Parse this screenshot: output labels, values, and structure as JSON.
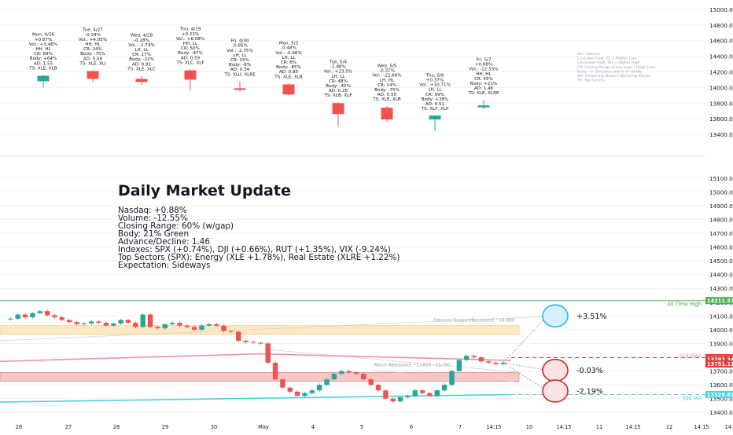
{
  "colors": {
    "up": "#26a69a",
    "down": "#ef5350",
    "ath": "#4caf50",
    "ema21": "#f48fb1",
    "ma50": "#4dd0e1",
    "red_level": "#e53935",
    "zone_orange": "#fde8c4",
    "zone_red": "#f7c6c6",
    "axis_text": "#131722",
    "grid": "#f0f3fa"
  },
  "weekly_panel": {
    "y_axis": [
      "15000.00",
      "14800.00",
      "14600.00",
      "14400.00",
      "14200.00",
      "14000.00",
      "13800.00",
      "13600.00",
      "13400.00"
    ],
    "ylim": [
      13300,
      15050
    ],
    "days": [
      {
        "lines": [
          "Mon, 4/26",
          "+0.87%",
          "Vol.: +3.46%",
          "HH, HL",
          "CR: 89%",
          "Body: +64%",
          "AD: 1.55",
          "TS: XLE, XLB"
        ],
        "o": 14080,
        "h": 14160,
        "l": 14000,
        "c": 14150
      },
      {
        "lines": [
          "Tue, 4/27",
          "-0.34%",
          "Vol.: +4.05%",
          "HH, HL",
          "CR: 24%",
          "Body: -75%",
          "AD: 0.58",
          "TS: XLE, XLI"
        ],
        "o": 14210,
        "h": 14220,
        "l": 14070,
        "c": 14110
      },
      {
        "lines": [
          "Wed, 4/28",
          "-0.28%",
          "Vol.: -2.74%",
          "LH, LL",
          "CR: 17%",
          "Body: -22%",
          "AD: 0.91",
          "TS: XLE, XLC"
        ],
        "o": 14110,
        "h": 14150,
        "l": 14030,
        "c": 14070
      },
      {
        "lines": [
          "Thu, 4/29",
          "+0.22%",
          "Vol.: +8.08%",
          "HH, LL",
          "CR: 50%",
          "Body: -47%",
          "AD: 0.59",
          "TS: XLC, XLF"
        ],
        "o": 14220,
        "h": 14230,
        "l": 13960,
        "c": 14100
      },
      {
        "lines": [
          "Fri, 4/30",
          "-0.85%",
          "Vol.: -2.75%",
          "LH, LL",
          "CR: 15%",
          "Body: -6%",
          "AD: 0.34",
          "TS: XLU, XLRE"
        ],
        "o": 13990,
        "h": 14080,
        "l": 13950,
        "c": 13970
      },
      {
        "lines": [
          "Mon, 5/3",
          "-0.48%",
          "Vol.: -0.66%",
          "LH, LL",
          "CR: 8%",
          "Body: -85%",
          "AD: 0.85",
          "TS: XLE, XLB"
        ],
        "o": 14040,
        "h": 14050,
        "l": 13900,
        "c": 13910
      },
      {
        "lines": [
          "Tue, 5/4",
          "-1.88%",
          "Vol.: +23.5%",
          "LH, LL",
          "CR: 48%",
          "Body: -45%",
          "AD: 0.28",
          "TS: XLB, XLF"
        ],
        "o": 13800,
        "h": 13810,
        "l": 13500,
        "c": 13660
      },
      {
        "lines": [
          "Wed, 5/5",
          "-0.37%",
          "Vol.: -22.86%",
          "LH, HL",
          "CR: 14%",
          "Body: -75%",
          "AD: 0.55",
          "TS: XLE, XLB"
        ],
        "o": 13740,
        "h": 13760,
        "l": 13560,
        "c": 13590
      },
      {
        "lines": [
          "Thu, 5/6",
          "+0.37%",
          "Vol.: +10.71%",
          "LH, LL",
          "CR: 99%",
          "Body: +38%",
          "AD: 0.51",
          "TS: XLF, XLP"
        ],
        "o": 13590,
        "h": 13640,
        "l": 13440,
        "c": 13640
      },
      {
        "lines": [
          "Fri, 5/7",
          "+0.88%",
          "Vol.: -12.55%",
          "HH, HL",
          "CR: 45%",
          "Body: +21%",
          "AD: 1.46",
          "TS: XLE, XLRE"
        ],
        "o": 13745,
        "h": 13840,
        "l": 13720,
        "c": 13770
      }
    ],
    "legend": [
      "Vol.: Volume",
      "LL=Lower Low, HL = Higher Low",
      "LH=Lower High, HH = Higher High",
      "CR: Closing Range (Close-Low) / (High-Low)",
      "Body: +/- Direction and % of candle",
      "AD: Advancing Stocks / Declining Stocks",
      "TS: Top Sectors"
    ]
  },
  "update": {
    "title": "Daily Market Update",
    "lines": [
      "Nasdaq: +0.88%",
      "Volume: -12.55%",
      "Closing Range: 60% (w/gap)",
      "Body: 21% Green",
      "Advance/Decline: 1.46",
      "Indexes: SPX (+0.74%), DJI (+0.66%), RUT (+1.35%), VIX (-9.24%)",
      "Top Sectors (SPX): Energy (XLE +1.78%), Real Estate (XLRE +1.22%)",
      "Expectation: Sideways"
    ]
  },
  "main_chart": {
    "y_axis": [
      "15100.00",
      "15000.00",
      "14900.00",
      "14800.00",
      "14700.00",
      "14600.00",
      "14500.00",
      "14400.00",
      "14300.00",
      "14200.00",
      "14100.00",
      "14000.00",
      "13900.00",
      "13800.00",
      "13700.00",
      "13600.00",
      "13500.00",
      "13400.00"
    ],
    "ylim": [
      13350,
      15150
    ],
    "x_axis": [
      "26",
      "27",
      "28",
      "29",
      "30",
      "May",
      "4",
      "5",
      "6",
      "7",
      "14:15",
      "10",
      "14:15",
      "11",
      "14:15",
      "12",
      "14:15",
      "14:1"
    ],
    "ath": {
      "label": "All Time High",
      "value": "14211.57",
      "level": 14211.57
    },
    "ema21": {
      "label": "21d EMA",
      "value": "13797.33",
      "level": 13797.33
    },
    "ma50": {
      "label": "50d MA",
      "value": "13529.61",
      "level": 13529.61
    },
    "price_tags": [
      {
        "value": "13782.34",
        "level": 13782.34
      },
      {
        "value": "13751.11",
        "level": 13751.11
      }
    ],
    "zones": [
      {
        "label": "February Support/Resistance ~14,000",
        "low": 13965,
        "high": 14030
      },
      {
        "label": "March Resistance ~13,600 - 13,700",
        "low": 13625,
        "high": 13690
      }
    ],
    "scenarios": [
      {
        "label": "+3.51%",
        "level": 14100,
        "kind": "up"
      },
      {
        "label": "-0.03%",
        "level": 13705,
        "kind": "down"
      },
      {
        "label": "-2.19%",
        "level": 13555,
        "kind": "down"
      }
    ],
    "price_path": [
      14075,
      14080,
      14110,
      14090,
      14120,
      14135,
      14105,
      14090,
      14070,
      14055,
      14040,
      14045,
      14060,
      14050,
      14030,
      14045,
      14070,
      14050,
      14020,
      14110,
      14020,
      14010,
      14040,
      14050,
      14030,
      14020,
      14000,
      14030,
      14040,
      14030,
      13990,
      13985,
      13920,
      13910,
      13905,
      13900,
      13760,
      13640,
      13580,
      13550,
      13520,
      13540,
      13560,
      13600,
      13640,
      13680,
      13700,
      13690,
      13680,
      13640,
      13600,
      13560,
      13500,
      13480,
      13510,
      13520,
      13560,
      13540,
      13520,
      13560,
      13600,
      13700,
      13780,
      13810,
      13800,
      13770,
      13760,
      13750,
      13760
    ]
  }
}
